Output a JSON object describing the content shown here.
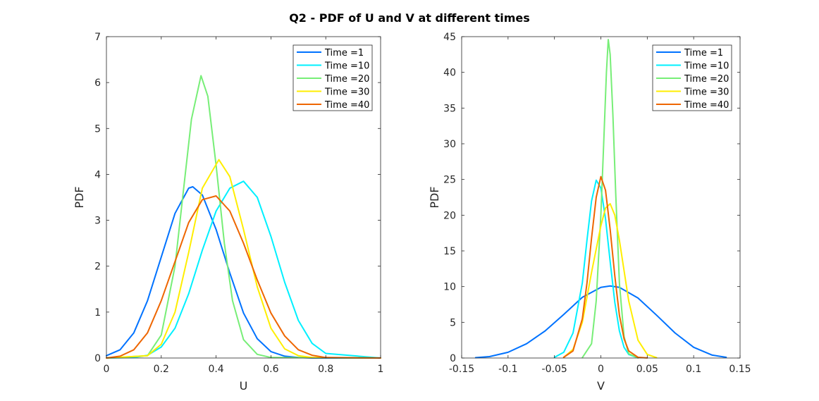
{
  "figure": {
    "title": "Q2 - PDF of U and V at different times"
  },
  "legend_entries": [
    "Time =1",
    "Time =10",
    "Time =20",
    "Time =30",
    "Time =40"
  ],
  "colors": {
    "Time =1": "#0072ff",
    "Time =10": "#00f0ff",
    "Time =20": "#77ee77",
    "Time =30": "#ffee00",
    "Time =40": "#ee6600"
  },
  "chart_data": [
    {
      "type": "line",
      "xlabel": "U",
      "ylabel": "PDF",
      "xlim": [
        0,
        1
      ],
      "ylim": [
        0,
        7
      ],
      "xticks": [
        0,
        0.2,
        0.4,
        0.6,
        0.8,
        1
      ],
      "yticks": [
        0,
        1,
        2,
        3,
        4,
        5,
        6,
        7
      ],
      "xtick_labels": [
        "0",
        "0.2",
        "0.4",
        "0.6",
        "0.8",
        "1"
      ],
      "ytick_labels": [
        "0",
        "1",
        "2",
        "3",
        "4",
        "5",
        "6",
        "7"
      ],
      "legend_position": "top-right",
      "grid": false,
      "series": [
        {
          "name": "Time =1",
          "x": [
            0,
            0.05,
            0.1,
            0.15,
            0.2,
            0.25,
            0.3,
            0.315,
            0.35,
            0.4,
            0.45,
            0.5,
            0.55,
            0.6,
            0.65,
            0.7,
            0.75,
            0.8,
            1
          ],
          "y": [
            0.05,
            0.18,
            0.55,
            1.25,
            2.2,
            3.15,
            3.7,
            3.73,
            3.55,
            2.8,
            1.85,
            0.98,
            0.42,
            0.14,
            0.04,
            0.01,
            0,
            0,
            0
          ]
        },
        {
          "name": "Time =10",
          "x": [
            0,
            0.1,
            0.15,
            0.2,
            0.25,
            0.3,
            0.35,
            0.4,
            0.45,
            0.5,
            0.55,
            0.6,
            0.65,
            0.7,
            0.75,
            0.8,
            1
          ],
          "y": [
            0,
            0.01,
            0.06,
            0.24,
            0.65,
            1.4,
            2.35,
            3.2,
            3.7,
            3.85,
            3.5,
            2.65,
            1.65,
            0.82,
            0.32,
            0.1,
            0
          ]
        },
        {
          "name": "Time =20",
          "x": [
            0,
            0.15,
            0.2,
            0.25,
            0.28,
            0.31,
            0.345,
            0.37,
            0.4,
            0.43,
            0.46,
            0.5,
            0.55,
            0.6,
            1
          ],
          "y": [
            0,
            0.05,
            0.5,
            2.0,
            3.6,
            5.2,
            6.15,
            5.7,
            4.2,
            2.5,
            1.25,
            0.4,
            0.08,
            0.01,
            0
          ]
        },
        {
          "name": "Time =30",
          "x": [
            0,
            0.15,
            0.2,
            0.25,
            0.3,
            0.35,
            0.41,
            0.45,
            0.5,
            0.55,
            0.6,
            0.65,
            0.7,
            0.75,
            1
          ],
          "y": [
            0,
            0.05,
            0.3,
            1.0,
            2.3,
            3.7,
            4.32,
            3.95,
            2.8,
            1.55,
            0.65,
            0.2,
            0.05,
            0.01,
            0
          ]
        },
        {
          "name": "Time =40",
          "x": [
            0,
            0.05,
            0.1,
            0.15,
            0.2,
            0.25,
            0.3,
            0.35,
            0.4,
            0.45,
            0.5,
            0.55,
            0.6,
            0.65,
            0.7,
            0.75,
            0.8,
            1
          ],
          "y": [
            0,
            0.04,
            0.18,
            0.55,
            1.25,
            2.1,
            2.95,
            3.45,
            3.53,
            3.2,
            2.5,
            1.7,
            0.98,
            0.48,
            0.18,
            0.06,
            0.01,
            0
          ]
        }
      ]
    },
    {
      "type": "line",
      "xlabel": "V",
      "ylabel": "PDF",
      "xlim": [
        -0.15,
        0.15
      ],
      "ylim": [
        0,
        45
      ],
      "xticks": [
        -0.15,
        -0.1,
        -0.05,
        0,
        0.05,
        0.1,
        0.15
      ],
      "yticks": [
        0,
        5,
        10,
        15,
        20,
        25,
        30,
        35,
        40,
        45
      ],
      "xtick_labels": [
        "-0.15",
        "-0.1",
        "-0.05",
        "0",
        "0.05",
        "0.1",
        "0.15"
      ],
      "ytick_labels": [
        "0",
        "5",
        "10",
        "15",
        "20",
        "25",
        "30",
        "35",
        "40",
        "45"
      ],
      "legend_position": "top-right",
      "grid": false,
      "series": [
        {
          "name": "Time =1",
          "x": [
            -0.135,
            -0.12,
            -0.1,
            -0.08,
            -0.06,
            -0.04,
            -0.02,
            0,
            0.01,
            0.02,
            0.04,
            0.06,
            0.08,
            0.1,
            0.12,
            0.135
          ],
          "y": [
            0.05,
            0.2,
            0.8,
            2.0,
            3.8,
            6.1,
            8.5,
            9.9,
            10.1,
            9.9,
            8.4,
            6.0,
            3.5,
            1.5,
            0.4,
            0.1
          ]
        },
        {
          "name": "Time =10",
          "x": [
            -0.05,
            -0.04,
            -0.03,
            -0.02,
            -0.015,
            -0.01,
            -0.005,
            0,
            0.005,
            0.01,
            0.015,
            0.02,
            0.025,
            0.03,
            0.04
          ],
          "y": [
            0.1,
            0.8,
            3.5,
            10.5,
            16.5,
            22.0,
            24.9,
            23.8,
            19.5,
            13.5,
            7.8,
            3.8,
            1.5,
            0.5,
            0.02
          ]
        },
        {
          "name": "Time =20",
          "x": [
            -0.02,
            -0.01,
            -0.005,
            0,
            0.003,
            0.006,
            0.008,
            0.01,
            0.013,
            0.016,
            0.02,
            0.025,
            0.03,
            0.04
          ],
          "y": [
            0.05,
            2.0,
            8.0,
            20.0,
            30.0,
            40.0,
            44.6,
            42.5,
            34.0,
            23.0,
            10.5,
            3.0,
            0.6,
            0.02
          ]
        },
        {
          "name": "Time =30",
          "x": [
            -0.04,
            -0.03,
            -0.02,
            -0.01,
            0,
            0.005,
            0.01,
            0.015,
            0.02,
            0.03,
            0.04,
            0.05,
            0.06
          ],
          "y": [
            0.1,
            1.2,
            5.0,
            12.0,
            18.5,
            21.0,
            21.6,
            20.0,
            16.5,
            8.0,
            2.5,
            0.5,
            0.05
          ]
        },
        {
          "name": "Time =40",
          "x": [
            -0.04,
            -0.03,
            -0.02,
            -0.015,
            -0.01,
            -0.005,
            0,
            0.005,
            0.01,
            0.015,
            0.02,
            0.025,
            0.03,
            0.04,
            0.05
          ],
          "y": [
            0.1,
            1.0,
            5.5,
            10.5,
            16.8,
            22.5,
            25.4,
            23.5,
            18.0,
            11.5,
            6.0,
            2.7,
            1.0,
            0.1,
            0.01
          ]
        }
      ]
    }
  ]
}
